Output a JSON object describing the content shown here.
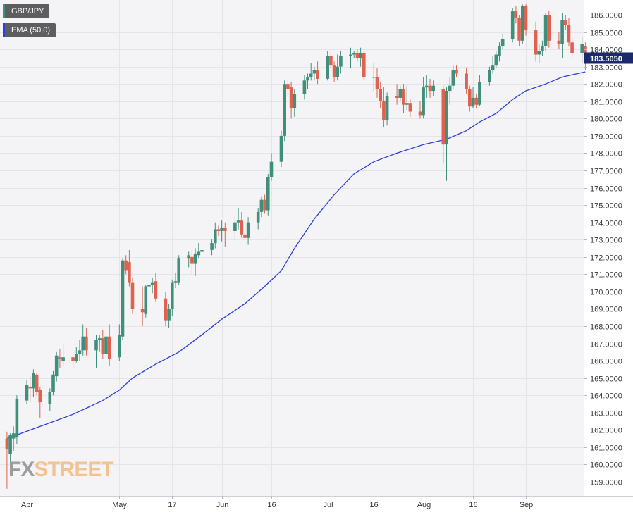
{
  "legend": {
    "pair": "GBP/JPY",
    "ema": "EMA (50,0)"
  },
  "logo": {
    "fx": "FX",
    "street": "STREET"
  },
  "colors": {
    "up": "#3f8f7a",
    "down": "#e0614d",
    "ema": "#2b3ee0",
    "price_line": "#1a2a6b",
    "price_label_bg": "#1a2a6b",
    "grid": "#e4e4ea",
    "plot_bg": "#f4f4f7"
  },
  "chart_data": {
    "type": "candlestick",
    "title": "GBP/JPY",
    "ylim": [
      158.3,
      186.9
    ],
    "y_ticks": [
      "159.0000",
      "160.0000",
      "161.0000",
      "162.0000",
      "163.0000",
      "164.0000",
      "165.0000",
      "166.0000",
      "167.0000",
      "168.0000",
      "169.0000",
      "170.0000",
      "171.0000",
      "172.0000",
      "173.0000",
      "174.0000",
      "175.0000",
      "176.0000",
      "177.0000",
      "178.0000",
      "179.0000",
      "180.0000",
      "181.0000",
      "182.0000",
      "183.0000",
      "184.0000",
      "185.0000",
      "186.0000"
    ],
    "x_tick_labels": [
      {
        "label": "Apr",
        "date": "2023-04-03"
      },
      {
        "label": "May",
        "date": "2023-05-01"
      },
      {
        "label": "17",
        "date": "2023-05-17"
      },
      {
        "label": "Jun",
        "date": "2023-06-01"
      },
      {
        "label": "16",
        "date": "2023-06-16"
      },
      {
        "label": "Jul",
        "date": "2023-07-03"
      },
      {
        "label": "16",
        "date": "2023-07-17"
      },
      {
        "label": "Aug",
        "date": "2023-08-01"
      },
      {
        "label": "16",
        "date": "2023-08-16"
      },
      {
        "label": "Sep",
        "date": "2023-09-01"
      }
    ],
    "current_price": "183.5050",
    "current_price_value": 183.505,
    "candles": [
      {
        "date": "2023-03-28",
        "o": 161.5,
        "h": 161.9,
        "l": 158.6,
        "c": 160.9
      },
      {
        "date": "2023-03-29",
        "o": 160.6,
        "h": 161.8,
        "l": 159.7,
        "c": 161.7
      },
      {
        "date": "2023-03-30",
        "o": 161.5,
        "h": 162.2,
        "l": 160.8,
        "c": 161.8
      },
      {
        "date": "2023-03-31",
        "o": 161.6,
        "h": 164.0,
        "l": 161.2,
        "c": 163.8
      },
      {
        "date": "2023-04-03",
        "o": 163.7,
        "h": 164.9,
        "l": 163.5,
        "c": 164.6
      },
      {
        "date": "2023-04-04",
        "o": 164.5,
        "h": 165.1,
        "l": 163.6,
        "c": 164.4
      },
      {
        "date": "2023-04-05",
        "o": 164.4,
        "h": 165.5,
        "l": 163.9,
        "c": 165.3
      },
      {
        "date": "2023-04-06",
        "o": 165.2,
        "h": 165.3,
        "l": 164.0,
        "c": 164.2
      },
      {
        "date": "2023-04-07",
        "o": 164.3,
        "h": 164.5,
        "l": 162.7,
        "c": 163.6
      },
      {
        "date": "2023-04-10",
        "o": 163.5,
        "h": 164.4,
        "l": 163.1,
        "c": 164.2
      },
      {
        "date": "2023-04-11",
        "o": 164.2,
        "h": 165.4,
        "l": 164.0,
        "c": 165.2
      },
      {
        "date": "2023-04-12",
        "o": 165.1,
        "h": 166.5,
        "l": 164.8,
        "c": 166.3
      },
      {
        "date": "2023-04-13",
        "o": 166.2,
        "h": 166.7,
        "l": 165.6,
        "c": 166.1
      },
      {
        "date": "2023-04-14",
        "o": 166.0,
        "h": 167.0,
        "l": 165.7,
        "c": 166.2
      },
      {
        "date": "2023-04-17",
        "o": 166.2,
        "h": 166.5,
        "l": 165.5,
        "c": 166.0
      },
      {
        "date": "2023-04-18",
        "o": 166.0,
        "h": 166.8,
        "l": 165.9,
        "c": 166.4
      },
      {
        "date": "2023-04-19",
        "o": 166.4,
        "h": 167.2,
        "l": 166.0,
        "c": 166.6
      },
      {
        "date": "2023-04-20",
        "o": 166.6,
        "h": 168.1,
        "l": 166.3,
        "c": 167.4
      },
      {
        "date": "2023-04-21",
        "o": 167.4,
        "h": 167.9,
        "l": 166.3,
        "c": 166.6
      },
      {
        "date": "2023-04-24",
        "o": 166.6,
        "h": 167.5,
        "l": 165.6,
        "c": 167.2
      },
      {
        "date": "2023-04-25",
        "o": 167.2,
        "h": 167.5,
        "l": 166.5,
        "c": 167.3
      },
      {
        "date": "2023-04-26",
        "o": 167.3,
        "h": 167.8,
        "l": 166.1,
        "c": 166.4
      },
      {
        "date": "2023-04-27",
        "o": 166.4,
        "h": 167.9,
        "l": 165.7,
        "c": 167.4
      },
      {
        "date": "2023-04-28",
        "o": 167.4,
        "h": 168.1,
        "l": 165.7,
        "c": 166.1
      },
      {
        "date": "2023-05-01",
        "o": 166.2,
        "h": 168.1,
        "l": 166.0,
        "c": 167.5
      },
      {
        "date": "2023-05-02",
        "o": 167.4,
        "h": 171.9,
        "l": 167.2,
        "c": 171.8
      },
      {
        "date": "2023-05-03",
        "o": 171.8,
        "h": 172.1,
        "l": 171.0,
        "c": 171.2
      },
      {
        "date": "2023-05-04",
        "o": 171.7,
        "h": 172.4,
        "l": 170.3,
        "c": 170.5
      },
      {
        "date": "2023-05-05",
        "o": 170.5,
        "h": 170.8,
        "l": 168.7,
        "c": 169.0
      },
      {
        "date": "2023-05-08",
        "o": 169.0,
        "h": 170.3,
        "l": 168.0,
        "c": 168.8
      },
      {
        "date": "2023-05-09",
        "o": 168.7,
        "h": 170.4,
        "l": 168.5,
        "c": 170.3
      },
      {
        "date": "2023-05-10",
        "o": 170.3,
        "h": 171.0,
        "l": 169.8,
        "c": 170.4
      },
      {
        "date": "2023-05-11",
        "o": 170.4,
        "h": 170.8,
        "l": 169.9,
        "c": 170.5
      },
      {
        "date": "2023-05-12",
        "o": 170.6,
        "h": 171.1,
        "l": 169.4,
        "c": 169.6
      },
      {
        "date": "2023-05-15",
        "o": 169.6,
        "h": 170.0,
        "l": 168.0,
        "c": 168.3
      },
      {
        "date": "2023-05-16",
        "o": 168.3,
        "h": 169.3,
        "l": 167.9,
        "c": 169.0
      },
      {
        "date": "2023-05-17",
        "o": 169.0,
        "h": 170.7,
        "l": 168.6,
        "c": 170.5
      },
      {
        "date": "2023-05-18",
        "o": 170.5,
        "h": 171.1,
        "l": 170.2,
        "c": 170.6
      },
      {
        "date": "2023-05-19",
        "o": 170.5,
        "h": 172.1,
        "l": 170.4,
        "c": 171.9
      },
      {
        "date": "2023-05-22",
        "o": 171.9,
        "h": 172.3,
        "l": 171.4,
        "c": 172.1
      },
      {
        "date": "2023-05-23",
        "o": 172.0,
        "h": 172.4,
        "l": 171.0,
        "c": 171.6
      },
      {
        "date": "2023-05-24",
        "o": 171.6,
        "h": 172.5,
        "l": 170.9,
        "c": 172.2
      },
      {
        "date": "2023-05-25",
        "o": 172.1,
        "h": 172.8,
        "l": 171.9,
        "c": 172.3
      },
      {
        "date": "2023-05-26",
        "o": 172.3,
        "h": 172.7,
        "l": 171.5,
        "c": 172.4
      },
      {
        "date": "2023-05-29",
        "o": 172.4,
        "h": 173.0,
        "l": 172.1,
        "c": 172.8
      },
      {
        "date": "2023-05-30",
        "o": 172.8,
        "h": 174.0,
        "l": 172.5,
        "c": 173.6
      },
      {
        "date": "2023-05-31",
        "o": 173.6,
        "h": 173.8,
        "l": 173.2,
        "c": 173.5
      },
      {
        "date": "2023-06-01",
        "o": 173.5,
        "h": 174.1,
        "l": 172.9,
        "c": 173.7
      },
      {
        "date": "2023-06-02",
        "o": 173.7,
        "h": 174.0,
        "l": 172.6,
        "c": 173.5
      },
      {
        "date": "2023-06-05",
        "o": 173.5,
        "h": 174.4,
        "l": 173.0,
        "c": 174.0
      },
      {
        "date": "2023-06-06",
        "o": 174.0,
        "h": 174.8,
        "l": 173.6,
        "c": 174.1
      },
      {
        "date": "2023-06-07",
        "o": 174.1,
        "h": 174.6,
        "l": 173.1,
        "c": 173.3
      },
      {
        "date": "2023-06-08",
        "o": 173.3,
        "h": 173.6,
        "l": 172.7,
        "c": 173.1
      },
      {
        "date": "2023-06-09",
        "o": 173.1,
        "h": 174.3,
        "l": 172.7,
        "c": 174.0
      },
      {
        "date": "2023-06-12",
        "o": 174.0,
        "h": 174.8,
        "l": 173.6,
        "c": 174.6
      },
      {
        "date": "2023-06-13",
        "o": 174.6,
        "h": 175.5,
        "l": 174.3,
        "c": 175.3
      },
      {
        "date": "2023-06-14",
        "o": 175.3,
        "h": 175.6,
        "l": 174.5,
        "c": 174.7
      },
      {
        "date": "2023-06-15",
        "o": 174.7,
        "h": 176.8,
        "l": 174.4,
        "c": 176.6
      },
      {
        "date": "2023-06-16",
        "o": 176.6,
        "h": 178.0,
        "l": 176.4,
        "c": 177.5
      },
      {
        "date": "2023-06-19",
        "o": 177.5,
        "h": 179.3,
        "l": 177.2,
        "c": 179.0
      },
      {
        "date": "2023-06-20",
        "o": 179.0,
        "h": 182.2,
        "l": 178.7,
        "c": 182.0
      },
      {
        "date": "2023-06-21",
        "o": 182.0,
        "h": 182.2,
        "l": 181.3,
        "c": 181.7
      },
      {
        "date": "2023-06-22",
        "o": 181.8,
        "h": 182.1,
        "l": 180.0,
        "c": 180.6
      },
      {
        "date": "2023-06-23",
        "o": 180.6,
        "h": 181.7,
        "l": 180.1,
        "c": 181.4
      },
      {
        "date": "2023-06-26",
        "o": 181.4,
        "h": 182.5,
        "l": 181.1,
        "c": 182.2
      },
      {
        "date": "2023-06-27",
        "o": 182.2,
        "h": 182.6,
        "l": 181.7,
        "c": 182.4
      },
      {
        "date": "2023-06-28",
        "o": 182.4,
        "h": 183.2,
        "l": 182.2,
        "c": 182.6
      },
      {
        "date": "2023-06-29",
        "o": 182.6,
        "h": 183.0,
        "l": 182.2,
        "c": 182.8
      },
      {
        "date": "2023-06-30",
        "o": 182.8,
        "h": 183.3,
        "l": 182.0,
        "c": 182.3
      },
      {
        "date": "2023-07-03",
        "o": 182.3,
        "h": 183.9,
        "l": 182.2,
        "c": 183.6
      },
      {
        "date": "2023-07-04",
        "o": 183.6,
        "h": 183.9,
        "l": 182.9,
        "c": 183.1
      },
      {
        "date": "2023-07-05",
        "o": 183.1,
        "h": 183.3,
        "l": 182.1,
        "c": 182.4
      },
      {
        "date": "2023-07-06",
        "o": 182.4,
        "h": 183.7,
        "l": 182.2,
        "c": 183.0
      },
      {
        "date": "2023-07-07",
        "o": 183.0,
        "h": 183.9,
        "l": 182.6,
        "c": 183.6
      },
      {
        "date": "2023-07-10",
        "o": 183.6,
        "h": 184.1,
        "l": 182.9,
        "c": 183.7
      },
      {
        "date": "2023-07-11",
        "o": 183.7,
        "h": 183.9,
        "l": 183.5,
        "c": 183.8
      },
      {
        "date": "2023-07-12",
        "o": 183.8,
        "h": 184.0,
        "l": 183.3,
        "c": 183.5
      },
      {
        "date": "2023-07-13",
        "o": 183.5,
        "h": 184.1,
        "l": 183.0,
        "c": 183.8
      },
      {
        "date": "2023-07-14",
        "o": 183.8,
        "h": 183.9,
        "l": 182.2,
        "c": 182.4
      },
      {
        "date": "2023-07-17",
        "o": 182.4,
        "h": 183.2,
        "l": 181.6,
        "c": 182.4
      },
      {
        "date": "2023-07-18",
        "o": 182.4,
        "h": 182.9,
        "l": 181.2,
        "c": 181.7
      },
      {
        "date": "2023-07-19",
        "o": 181.7,
        "h": 182.1,
        "l": 180.6,
        "c": 181.0
      },
      {
        "date": "2023-07-20",
        "o": 181.0,
        "h": 181.8,
        "l": 179.5,
        "c": 179.9
      },
      {
        "date": "2023-07-21",
        "o": 179.9,
        "h": 181.5,
        "l": 179.6,
        "c": 181.3
      },
      {
        "date": "2023-07-24",
        "o": 181.3,
        "h": 182.0,
        "l": 180.8,
        "c": 181.2
      },
      {
        "date": "2023-07-25",
        "o": 181.2,
        "h": 181.9,
        "l": 181.0,
        "c": 181.7
      },
      {
        "date": "2023-07-26",
        "o": 181.7,
        "h": 182.0,
        "l": 180.3,
        "c": 180.8
      },
      {
        "date": "2023-07-27",
        "o": 180.8,
        "h": 181.9,
        "l": 180.5,
        "c": 180.9
      },
      {
        "date": "2023-07-28",
        "o": 180.9,
        "h": 181.1,
        "l": 180.1,
        "c": 180.4
      },
      {
        "date": "2023-07-31",
        "o": 180.4,
        "h": 181.0,
        "l": 180.0,
        "c": 180.2
      },
      {
        "date": "2023-08-01",
        "o": 180.2,
        "h": 182.4,
        "l": 180.0,
        "c": 181.8
      },
      {
        "date": "2023-08-02",
        "o": 181.8,
        "h": 182.5,
        "l": 181.2,
        "c": 181.9
      },
      {
        "date": "2023-08-03",
        "o": 181.9,
        "h": 182.3,
        "l": 181.2,
        "c": 181.6
      },
      {
        "date": "2023-08-04",
        "o": 181.6,
        "h": 182.2,
        "l": 181.3,
        "c": 181.9
      },
      {
        "date": "2023-08-07",
        "o": 181.7,
        "h": 181.9,
        "l": 177.4,
        "c": 178.5
      },
      {
        "date": "2023-08-08",
        "o": 178.5,
        "h": 181.8,
        "l": 176.4,
        "c": 181.6
      },
      {
        "date": "2023-08-09",
        "o": 181.6,
        "h": 182.4,
        "l": 180.8,
        "c": 181.9
      },
      {
        "date": "2023-08-10",
        "o": 181.9,
        "h": 183.1,
        "l": 181.7,
        "c": 182.8
      },
      {
        "date": "2023-08-11",
        "o": 182.8,
        "h": 183.1,
        "l": 182.4,
        "c": 182.6
      },
      {
        "date": "2023-08-14",
        "o": 182.6,
        "h": 182.9,
        "l": 181.4,
        "c": 181.7
      },
      {
        "date": "2023-08-15",
        "o": 181.7,
        "h": 181.9,
        "l": 180.4,
        "c": 180.7
      },
      {
        "date": "2023-08-16",
        "o": 180.7,
        "h": 181.8,
        "l": 180.6,
        "c": 181.2
      },
      {
        "date": "2023-08-17",
        "o": 181.2,
        "h": 181.4,
        "l": 180.6,
        "c": 180.8
      },
      {
        "date": "2023-08-18",
        "o": 180.8,
        "h": 182.5,
        "l": 180.7,
        "c": 182.1
      },
      {
        "date": "2023-08-21",
        "o": 182.1,
        "h": 183.0,
        "l": 181.9,
        "c": 182.8
      },
      {
        "date": "2023-08-22",
        "o": 182.8,
        "h": 183.6,
        "l": 182.6,
        "c": 183.1
      },
      {
        "date": "2023-08-23",
        "o": 183.1,
        "h": 183.9,
        "l": 182.9,
        "c": 183.7
      },
      {
        "date": "2023-08-24",
        "o": 183.6,
        "h": 184.4,
        "l": 183.3,
        "c": 184.2
      },
      {
        "date": "2023-08-25",
        "o": 184.2,
        "h": 184.9,
        "l": 184.0,
        "c": 184.6
      },
      {
        "date": "2023-08-28",
        "o": 184.6,
        "h": 186.4,
        "l": 184.4,
        "c": 186.2
      },
      {
        "date": "2023-08-29",
        "o": 186.2,
        "h": 186.5,
        "l": 185.5,
        "c": 185.8
      },
      {
        "date": "2023-08-30",
        "o": 185.8,
        "h": 186.0,
        "l": 184.2,
        "c": 184.5
      },
      {
        "date": "2023-08-31",
        "o": 184.5,
        "h": 186.6,
        "l": 184.3,
        "c": 186.5
      },
      {
        "date": "2023-09-01",
        "o": 186.5,
        "h": 186.6,
        "l": 184.8,
        "c": 185.1
      },
      {
        "date": "2023-09-04",
        "o": 185.1,
        "h": 185.6,
        "l": 183.3,
        "c": 183.7
      },
      {
        "date": "2023-09-05",
        "o": 183.7,
        "h": 184.3,
        "l": 183.2,
        "c": 183.9
      },
      {
        "date": "2023-09-06",
        "o": 183.9,
        "h": 184.5,
        "l": 183.6,
        "c": 184.2
      },
      {
        "date": "2023-09-07",
        "o": 184.2,
        "h": 186.1,
        "l": 183.9,
        "c": 186.0
      },
      {
        "date": "2023-09-08",
        "o": 186.0,
        "h": 186.2,
        "l": 184.1,
        "c": 184.5
      },
      {
        "date": "2023-09-11",
        "o": 184.5,
        "h": 185.0,
        "l": 184.0,
        "c": 184.3
      },
      {
        "date": "2023-09-12",
        "o": 184.3,
        "h": 186.1,
        "l": 183.5,
        "c": 185.7
      },
      {
        "date": "2023-09-13",
        "o": 185.7,
        "h": 186.0,
        "l": 185.1,
        "c": 185.4
      },
      {
        "date": "2023-09-14",
        "o": 185.4,
        "h": 185.8,
        "l": 184.2,
        "c": 184.4
      },
      {
        "date": "2023-09-15",
        "o": 184.4,
        "h": 184.7,
        "l": 183.5,
        "c": 183.8
      },
      {
        "date": "2023-09-18",
        "o": 183.8,
        "h": 184.7,
        "l": 183.2,
        "c": 184.3
      },
      {
        "date": "2023-09-19",
        "o": 184.2,
        "h": 184.4,
        "l": 182.8,
        "c": 183.5
      }
    ],
    "ema": [
      {
        "date": "2023-03-28",
        "v": 161.5
      },
      {
        "date": "2023-04-07",
        "v": 162.2
      },
      {
        "date": "2023-04-17",
        "v": 162.9
      },
      {
        "date": "2023-04-26",
        "v": 163.7
      },
      {
        "date": "2023-05-01",
        "v": 164.3
      },
      {
        "date": "2023-05-05",
        "v": 165.0
      },
      {
        "date": "2023-05-12",
        "v": 165.8
      },
      {
        "date": "2023-05-19",
        "v": 166.5
      },
      {
        "date": "2023-05-26",
        "v": 167.5
      },
      {
        "date": "2023-06-01",
        "v": 168.4
      },
      {
        "date": "2023-06-08",
        "v": 169.3
      },
      {
        "date": "2023-06-14",
        "v": 170.3
      },
      {
        "date": "2023-06-19",
        "v": 171.2
      },
      {
        "date": "2023-06-23",
        "v": 172.5
      },
      {
        "date": "2023-06-29",
        "v": 174.2
      },
      {
        "date": "2023-07-05",
        "v": 175.6
      },
      {
        "date": "2023-07-11",
        "v": 176.8
      },
      {
        "date": "2023-07-17",
        "v": 177.5
      },
      {
        "date": "2023-07-24",
        "v": 178.0
      },
      {
        "date": "2023-08-01",
        "v": 178.5
      },
      {
        "date": "2023-08-08",
        "v": 178.8
      },
      {
        "date": "2023-08-14",
        "v": 179.3
      },
      {
        "date": "2023-08-18",
        "v": 179.8
      },
      {
        "date": "2023-08-23",
        "v": 180.3
      },
      {
        "date": "2023-08-28",
        "v": 181.1
      },
      {
        "date": "2023-09-01",
        "v": 181.6
      },
      {
        "date": "2023-09-07",
        "v": 182.0
      },
      {
        "date": "2023-09-12",
        "v": 182.4
      },
      {
        "date": "2023-09-19",
        "v": 182.7
      }
    ]
  }
}
